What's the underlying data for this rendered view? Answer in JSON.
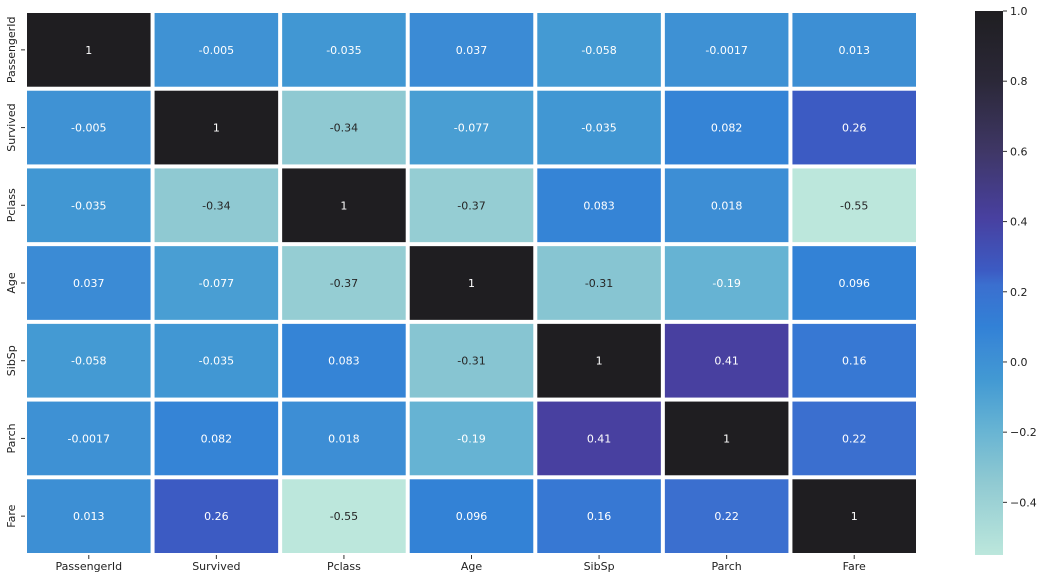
{
  "chart_data": {
    "type": "heatmap",
    "title": "",
    "xlabel": "",
    "ylabel": "",
    "x_labels": [
      "PassengerId",
      "Survived",
      "Pclass",
      "Age",
      "SibSp",
      "Parch",
      "Fare"
    ],
    "y_labels": [
      "PassengerId",
      "Survived",
      "Pclass",
      "Age",
      "SibSp",
      "Parch",
      "Fare"
    ],
    "values": [
      [
        1,
        -0.005,
        -0.035,
        0.037,
        -0.058,
        -0.0017,
        0.013
      ],
      [
        -0.005,
        1,
        -0.34,
        -0.077,
        -0.035,
        0.082,
        0.26
      ],
      [
        -0.035,
        -0.34,
        1,
        -0.37,
        0.083,
        0.018,
        -0.55
      ],
      [
        0.037,
        -0.077,
        -0.37,
        1,
        -0.31,
        -0.19,
        0.096
      ],
      [
        -0.058,
        -0.035,
        0.083,
        -0.31,
        1,
        0.41,
        0.16
      ],
      [
        -0.0017,
        0.082,
        0.018,
        -0.19,
        0.41,
        1,
        0.22
      ],
      [
        0.013,
        0.26,
        -0.55,
        0.096,
        0.16,
        0.22,
        1
      ]
    ],
    "cell_text": [
      [
        "1",
        "-0.005",
        "-0.035",
        "0.037",
        "-0.058",
        "-0.0017",
        "0.013"
      ],
      [
        "-0.005",
        "1",
        "-0.34",
        "-0.077",
        "-0.035",
        "0.082",
        "0.26"
      ],
      [
        "-0.035",
        "-0.34",
        "1",
        "-0.37",
        "0.083",
        "0.018",
        "-0.55"
      ],
      [
        "0.037",
        "-0.077",
        "-0.37",
        "1",
        "-0.31",
        "-0.19",
        "0.096"
      ],
      [
        "-0.058",
        "-0.035",
        "0.083",
        "-0.31",
        "1",
        "0.41",
        "0.16"
      ],
      [
        "-0.0017",
        "0.082",
        "0.018",
        "-0.19",
        "0.41",
        "1",
        "0.22"
      ],
      [
        "0.013",
        "0.26",
        "-0.55",
        "0.096",
        "0.16",
        "0.22",
        "1"
      ]
    ],
    "colorbar": {
      "ticks": [
        1.0,
        0.8,
        0.6,
        0.4,
        0.2,
        0.0,
        -0.2,
        -0.4
      ],
      "tick_labels": [
        "1.0",
        "0.8",
        "0.6",
        "0.4",
        "0.2",
        "0.0",
        "−0.2",
        "−0.4"
      ],
      "range": [
        -0.55,
        1.0
      ],
      "colormap": "icefire-like",
      "color_stops": [
        {
          "v": -0.55,
          "c": "#bce7dc"
        },
        {
          "v": -0.34,
          "c": "#8fc9d2"
        },
        {
          "v": -0.19,
          "c": "#66b3d3"
        },
        {
          "v": -0.05,
          "c": "#4299d3"
        },
        {
          "v": 0.04,
          "c": "#3b8bd5"
        },
        {
          "v": 0.1,
          "c": "#3281d6"
        },
        {
          "v": 0.22,
          "c": "#3b6fcf"
        },
        {
          "v": 0.26,
          "c": "#3c5bc3"
        },
        {
          "v": 0.41,
          "c": "#4840a0"
        },
        {
          "v": 0.6,
          "c": "#3f3766"
        },
        {
          "v": 0.8,
          "c": "#2b2838"
        },
        {
          "v": 1.0,
          "c": "#1f1e21"
        }
      ]
    },
    "grid": false,
    "legend": "colorbar-right"
  }
}
